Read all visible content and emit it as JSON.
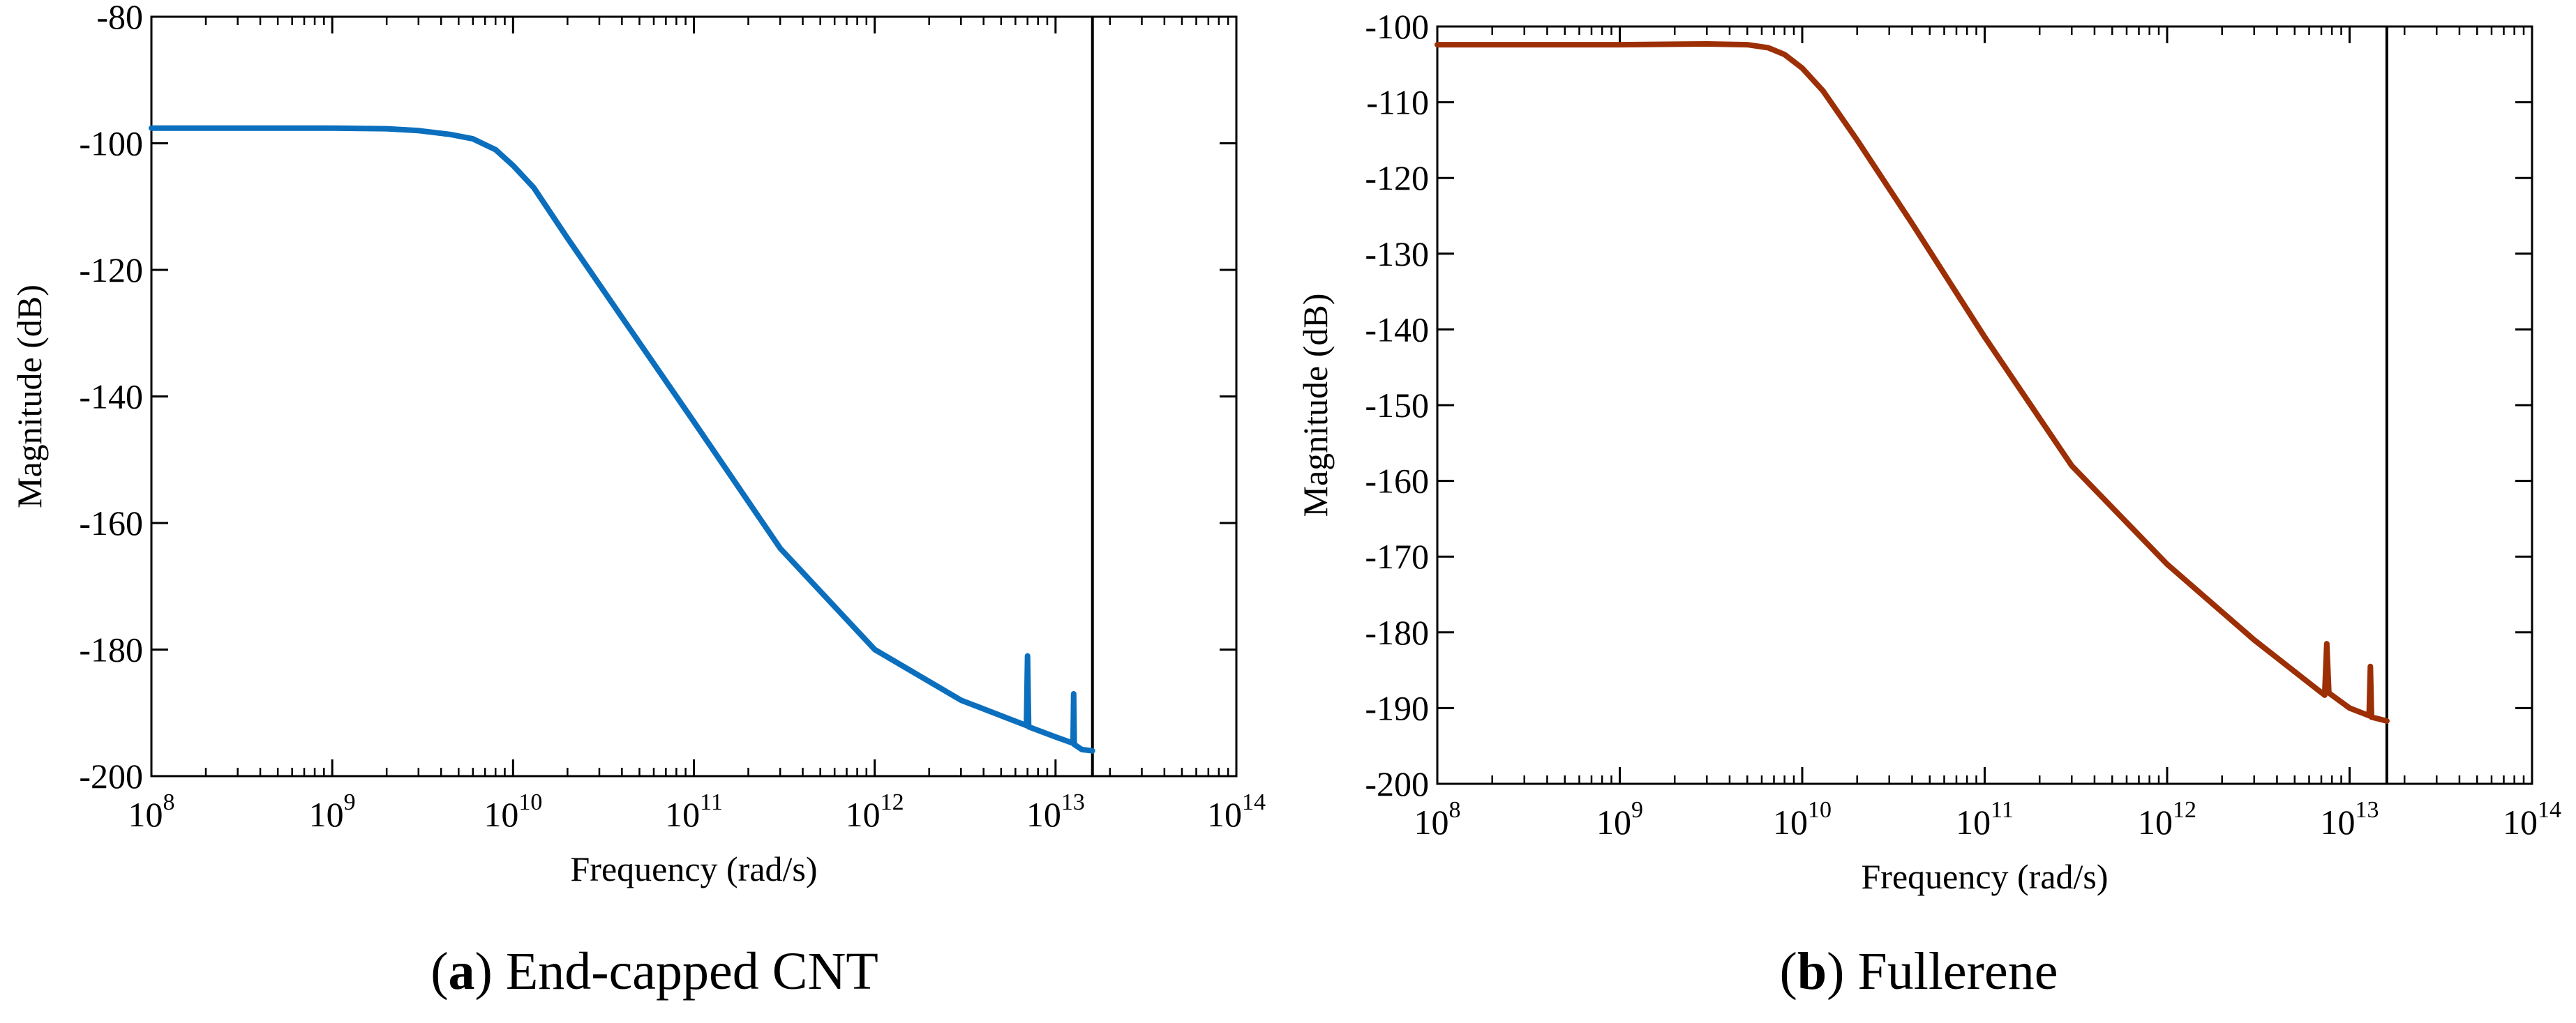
{
  "chart_data": [
    {
      "type": "line",
      "panel_label": "a",
      "caption": "End-capped CNT",
      "xlabel": "Frequency  (rad/s)",
      "ylabel": "Magnitude (dB)",
      "x_scale": "log",
      "xlim": [
        100000000,
        100000000000000
      ],
      "ylim": [
        -200,
        -80
      ],
      "x_ticks": [
        {
          "base": "10",
          "exp": "8"
        },
        {
          "base": "10",
          "exp": "9"
        },
        {
          "base": "10",
          "exp": "10"
        },
        {
          "base": "10",
          "exp": "11"
        },
        {
          "base": "10",
          "exp": "12"
        },
        {
          "base": "10",
          "exp": "13"
        },
        {
          "base": "10",
          "exp": "14"
        }
      ],
      "y_ticks": [
        "-80",
        "-100",
        "-120",
        "-140",
        "-160",
        "-180",
        "-200"
      ],
      "grid": false,
      "vertical_line_x": 16000000000000,
      "series": [
        {
          "name": "End-capped CNT",
          "color": "#0b6fbd",
          "points": [
            [
              100000000,
              -97.6
            ],
            [
              1000000000,
              -97.6
            ],
            [
              2000000000,
              -97.7
            ],
            [
              3000000000,
              -98.0
            ],
            [
              4500000000,
              -98.6
            ],
            [
              6000000000,
              -99.3
            ],
            [
              8000000000,
              -101.0
            ],
            [
              10000000000,
              -103.5
            ],
            [
              13000000000,
              -107.0
            ],
            [
              20000000000,
              -115.0
            ],
            [
              40000000000,
              -127.5
            ],
            [
              100000000000,
              -144.0
            ],
            [
              300000000000,
              -164.0
            ],
            [
              1000000000000,
              -180.0
            ],
            [
              3000000000000,
              -188.0
            ],
            [
              6900000000000,
              -192.0
            ],
            [
              7000000000000,
              -181.0
            ],
            [
              7100000000000,
              -192.2
            ],
            [
              10000000000000,
              -193.8
            ],
            [
              12500000000000,
              -194.8
            ],
            [
              12600000000000,
              -187.0
            ],
            [
              12700000000000,
              -195.0
            ],
            [
              14000000000000,
              -195.8
            ],
            [
              16000000000000,
              -196.0
            ]
          ]
        }
      ]
    },
    {
      "type": "line",
      "panel_label": "b",
      "caption": "Fullerene",
      "xlabel": "Frequency  (rad/s)",
      "ylabel": "Magnitude (dB)",
      "x_scale": "log",
      "xlim": [
        100000000,
        100000000000000
      ],
      "ylim": [
        -200,
        -100
      ],
      "x_ticks": [
        {
          "base": "10",
          "exp": "8"
        },
        {
          "base": "10",
          "exp": "9"
        },
        {
          "base": "10",
          "exp": "10"
        },
        {
          "base": "10",
          "exp": "11"
        },
        {
          "base": "10",
          "exp": "12"
        },
        {
          "base": "10",
          "exp": "13"
        },
        {
          "base": "10",
          "exp": "14"
        }
      ],
      "y_ticks": [
        "-100",
        "-110",
        "-120",
        "-130",
        "-140",
        "-150",
        "-160",
        "-170",
        "-180",
        "-190",
        "-200"
      ],
      "grid": false,
      "vertical_line_x": 16000000000000,
      "series": [
        {
          "name": "Fullerene",
          "color": "#9c2f05",
          "points": [
            [
              100000000,
              -102.4
            ],
            [
              1000000000,
              -102.4
            ],
            [
              3000000000,
              -102.3
            ],
            [
              5000000000,
              -102.4
            ],
            [
              6500000000,
              -102.8
            ],
            [
              8000000000,
              -103.7
            ],
            [
              10000000000,
              -105.5
            ],
            [
              13000000000,
              -108.5
            ],
            [
              20000000000,
              -115.0
            ],
            [
              40000000000,
              -126.0
            ],
            [
              100000000000,
              -141.0
            ],
            [
              300000000000,
              -158.0
            ],
            [
              1000000000000,
              -171.0
            ],
            [
              3000000000000,
              -181.0
            ],
            [
              7300000000000,
              -188.3
            ],
            [
              7500000000000,
              -181.5
            ],
            [
              7700000000000,
              -188.0
            ],
            [
              10000000000000,
              -190.0
            ],
            [
              12800000000000,
              -191.0
            ],
            [
              13000000000000,
              -184.5
            ],
            [
              13200000000000,
              -191.2
            ],
            [
              16000000000000,
              -191.7
            ]
          ]
        }
      ]
    }
  ]
}
